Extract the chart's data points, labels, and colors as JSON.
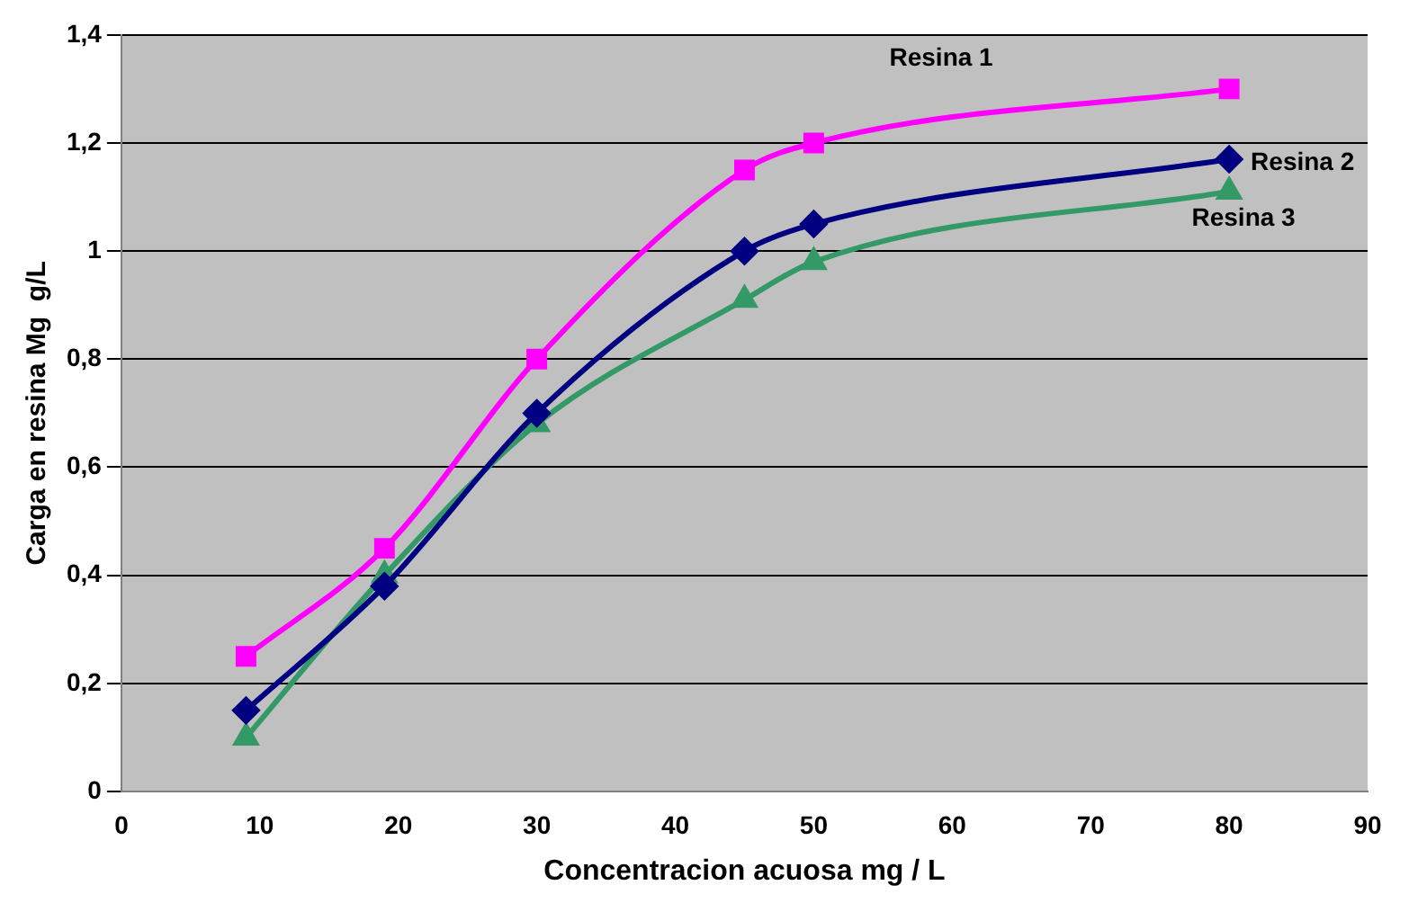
{
  "chart_data": {
    "type": "line",
    "xlabel": "Concentracion acuosa mg / L",
    "ylabel": "Carga en resina Mg  g/L",
    "series": [
      {
        "name": "Resina 1",
        "color": "#ff00ff",
        "marker": "square",
        "x": [
          9,
          19,
          30,
          45,
          50,
          80
        ],
        "values": [
          0.25,
          0.45,
          0.8,
          1.15,
          1.2,
          1.3
        ]
      },
      {
        "name": "Resina 2",
        "color": "#000080",
        "marker": "diamond",
        "x": [
          9,
          19,
          30,
          45,
          50,
          80
        ],
        "values": [
          0.15,
          0.38,
          0.7,
          1.0,
          1.05,
          1.17
        ]
      },
      {
        "name": "Resina 3",
        "color": "#339966",
        "marker": "triangle",
        "x": [
          9,
          19,
          30,
          45,
          50,
          80
        ],
        "values": [
          0.1,
          0.4,
          0.68,
          0.91,
          0.98,
          1.11
        ]
      }
    ],
    "xlim": [
      0,
      90
    ],
    "xticks": [
      0,
      10,
      20,
      30,
      40,
      50,
      60,
      70,
      80,
      90
    ],
    "ylim": [
      0,
      1.4
    ],
    "yticks": [
      0,
      {
        "value": 0.2,
        "label": "0,2"
      },
      {
        "value": 0.4,
        "label": "0,4"
      },
      {
        "value": 0.6,
        "label": "0,6"
      },
      {
        "value": 0.8,
        "label": "0,8"
      },
      1,
      {
        "value": 1.2,
        "label": "1,2"
      },
      {
        "value": 1.4,
        "label": "1,4"
      }
    ],
    "grid": "y",
    "legend": false
  }
}
